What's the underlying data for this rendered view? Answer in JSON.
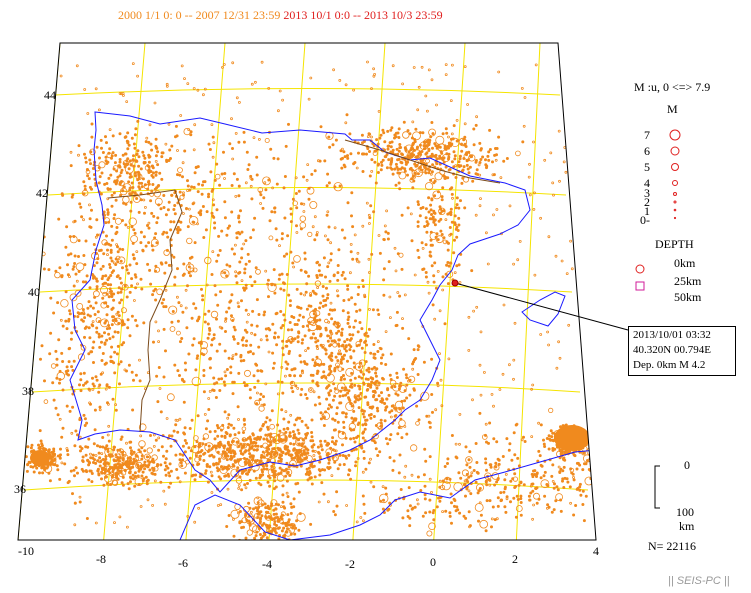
{
  "header": {
    "range1": "2000 1/1 0: 0 -- 2007 12/31 23:59",
    "range2": "2013 10/1 0:0 --  2013 10/3 23:59",
    "color1": "#f08a1e",
    "color2": "#e0201f"
  },
  "axes": {
    "lat_labels": [
      "44",
      "42",
      "40",
      "38",
      "36"
    ],
    "lon_labels": [
      "-10",
      "-8",
      "-6",
      "-4",
      "-2",
      "0",
      "2",
      "4"
    ]
  },
  "legend": {
    "range": "M :u, 0 <=> 7.9",
    "mag_title": "M",
    "mags": [
      "7",
      "6",
      "5",
      "4",
      "3",
      "2",
      "1",
      "0-"
    ],
    "depth_title": "DEPTH",
    "depths": [
      "0km",
      "25km",
      "50km"
    ]
  },
  "event": {
    "line1": "2013/10/01 03:32",
    "line2": "40.320N  00.794E",
    "line3": "Dep. 0km   M 4.2"
  },
  "scale": {
    "top": "0",
    "bottom": "100",
    "unit": "km"
  },
  "count": "N= 22116",
  "credit": "|| SEIS-PC ||",
  "colors": {
    "grid": "#f5e400",
    "coast": "#1a1aff",
    "border": "#7a4a1a",
    "events": "#f08a1e",
    "selected": "#e0201f"
  }
}
